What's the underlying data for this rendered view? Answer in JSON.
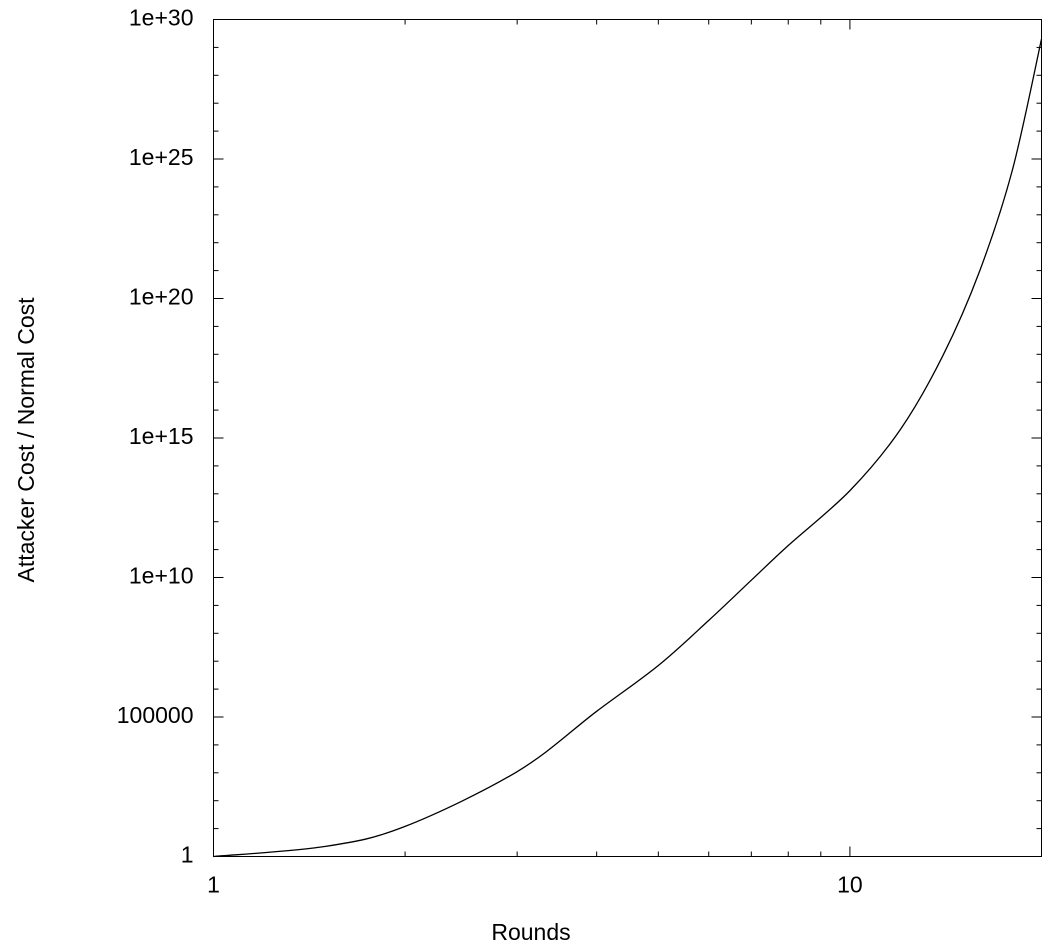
{
  "chart_data": {
    "type": "line",
    "xlabel": "Rounds",
    "ylabel": "Attacker Cost / Normal Cost",
    "x": [
      1,
      1.5,
      2,
      3,
      4,
      5,
      6,
      7,
      8,
      10,
      12,
      14,
      16,
      18,
      20
    ],
    "values": [
      1,
      2.3,
      12,
      1100,
      160000.0,
      7000000.0,
      290000000.0,
      8000000000.0,
      140000000000.0,
      13000000000000.0,
      2000000000000000.0,
      9e+17,
      1e+21,
      4e+24,
      2e+29
    ],
    "color": "#000000",
    "xscale": "log",
    "yscale": "log",
    "xlim": [
      1,
      20
    ],
    "ylim": [
      1,
      1e+30
    ],
    "xticks": [
      1,
      10
    ],
    "yticks": [
      1,
      100000,
      {
        "value": 10000000000.0,
        "label": "1e+10"
      },
      {
        "value": 1000000000000000.0,
        "label": "1e+15"
      },
      {
        "value": 1e+20,
        "label": "1e+20"
      },
      {
        "value": 1e+25,
        "label": "1e+25"
      },
      {
        "value": 1e+30,
        "label": "1e+30"
      }
    ],
    "xminorticks": [
      2,
      3,
      4,
      5,
      6,
      7,
      8,
      9,
      20
    ],
    "yminorticks": [
      10.0,
      100.0,
      1000.0,
      10000.0,
      1000000.0,
      10000000.0,
      100000000.0,
      1000000000.0,
      100000000000.0,
      1000000000000.0,
      10000000000000.0,
      100000000000000.0,
      1e+16,
      1e+17,
      1e+18,
      1e+19,
      1e+21,
      1e+22,
      1e+23,
      1e+24,
      1e+26,
      1e+27,
      1e+28,
      1e+29
    ]
  }
}
